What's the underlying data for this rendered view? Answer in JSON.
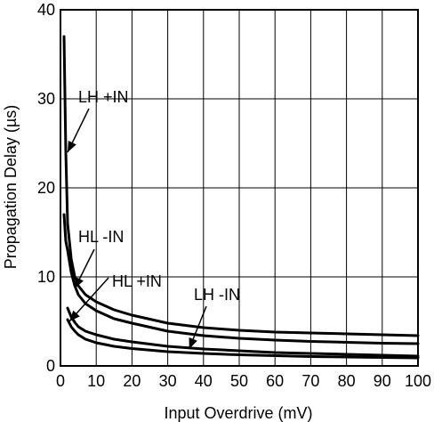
{
  "chart_data": {
    "type": "line",
    "xlabel": "Input Overdrive (mV)",
    "ylabel": "Propagation Delay (µs)",
    "xlim": [
      0,
      100
    ],
    "ylim": [
      0,
      40
    ],
    "x_ticks": [
      "0",
      "10",
      "20",
      "30",
      "40",
      "50",
      "60",
      "70",
      "80",
      "90",
      "100"
    ],
    "y_ticks": [
      "0",
      "10",
      "20",
      "30",
      "40"
    ],
    "grid": true,
    "series": [
      {
        "name": "LH +IN",
        "x": [
          1,
          1.5,
          2,
          3,
          4,
          5,
          7,
          10,
          15,
          20,
          30,
          40,
          50,
          60,
          70,
          80,
          90,
          100
        ],
        "y": [
          37,
          24,
          16,
          12,
          10,
          9,
          8,
          7.2,
          6.3,
          5.7,
          4.8,
          4.3,
          4.0,
          3.8,
          3.7,
          3.6,
          3.5,
          3.4
        ]
      },
      {
        "name": "HL -IN",
        "x": [
          1,
          1.5,
          2,
          3,
          4,
          5,
          7,
          10,
          15,
          20,
          30,
          40,
          50,
          60,
          70,
          80,
          90,
          100
        ],
        "y": [
          17,
          14,
          13,
          10.5,
          9.0,
          8.0,
          7.0,
          6.2,
          5.3,
          4.8,
          3.9,
          3.4,
          3.1,
          2.9,
          2.75,
          2.65,
          2.55,
          2.5
        ]
      },
      {
        "name": "HL +IN",
        "x": [
          2,
          3,
          4,
          5,
          7,
          10,
          15,
          20,
          30,
          40,
          50,
          60,
          70,
          80,
          90,
          100
        ],
        "y": [
          6.5,
          5.5,
          4.9,
          4.4,
          3.9,
          3.5,
          3.0,
          2.7,
          2.2,
          1.9,
          1.7,
          1.5,
          1.4,
          1.3,
          1.2,
          1.1
        ]
      },
      {
        "name": "LH -IN",
        "x": [
          2,
          3,
          4,
          5,
          7,
          10,
          15,
          20,
          30,
          40,
          50,
          60,
          70,
          80,
          90,
          100
        ],
        "y": [
          5.2,
          4.4,
          3.9,
          3.5,
          3.0,
          2.6,
          2.2,
          1.95,
          1.6,
          1.4,
          1.25,
          1.15,
          1.05,
          1.0,
          0.95,
          0.9
        ]
      }
    ],
    "annotations": [
      {
        "text": "LH +IN",
        "series": "LH +IN"
      },
      {
        "text": "HL -IN",
        "series": "HL -IN"
      },
      {
        "text": "HL +IN",
        "series": "HL +IN"
      },
      {
        "text": "LH -IN",
        "series": "LH -IN"
      }
    ]
  }
}
